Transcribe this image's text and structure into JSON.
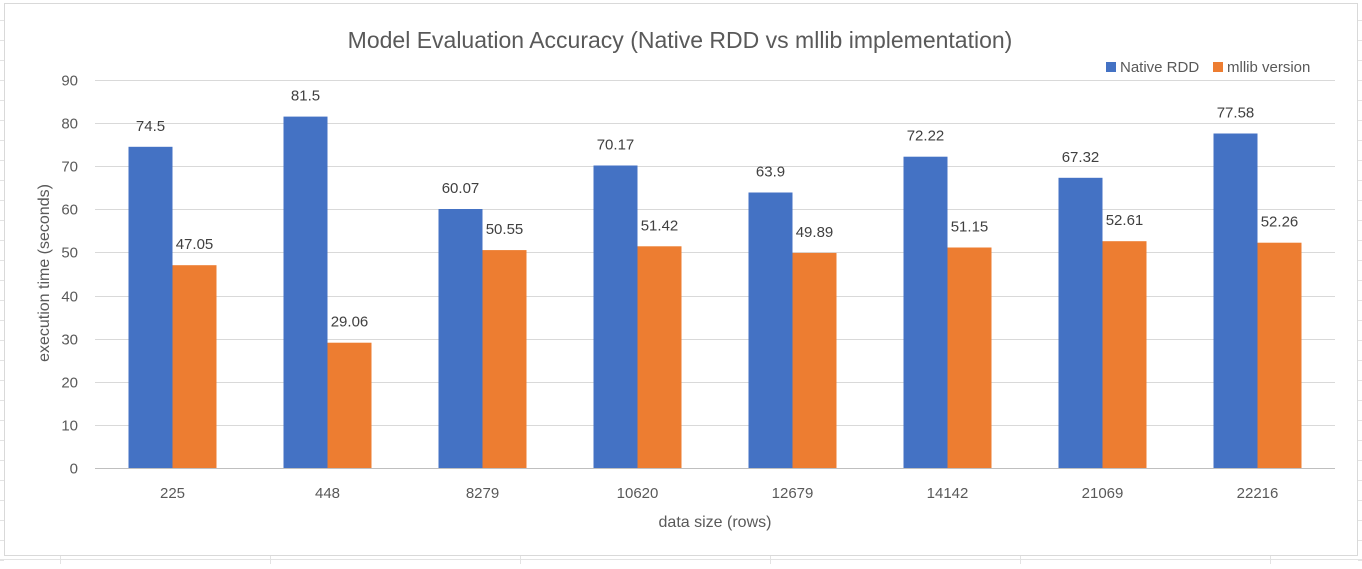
{
  "chart_data": {
    "type": "bar",
    "title": "Model Evaluation Accuracy (Native RDD vs mllib implementation)",
    "xlabel": "data size (rows)",
    "ylabel": "execution time (seconds)",
    "categories": [
      "225",
      "448",
      "8279",
      "10620",
      "12679",
      "14142",
      "21069",
      "22216"
    ],
    "series": [
      {
        "name": "Native RDD",
        "color": "#4472c4",
        "values": [
          74.5,
          81.5,
          60.07,
          70.17,
          63.9,
          72.22,
          67.32,
          77.58
        ],
        "labels": [
          "74.5",
          "81.5",
          "60.07",
          "70.17",
          "63.9",
          "72.22",
          "67.32",
          "77.58"
        ]
      },
      {
        "name": "mllib version",
        "color": "#ed7d31",
        "values": [
          47.05,
          29.06,
          50.55,
          51.42,
          49.89,
          51.15,
          52.61,
          52.26
        ],
        "labels": [
          "47.05",
          "29.06",
          "50.55",
          "51.42",
          "49.89",
          "51.15",
          "52.61",
          "52.26"
        ]
      }
    ],
    "ylim": [
      0,
      90
    ],
    "yticks": [
      "0",
      "10",
      "20",
      "30",
      "40",
      "50",
      "60",
      "70",
      "80",
      "90"
    ],
    "grid": true,
    "legend_position": "top-right"
  }
}
